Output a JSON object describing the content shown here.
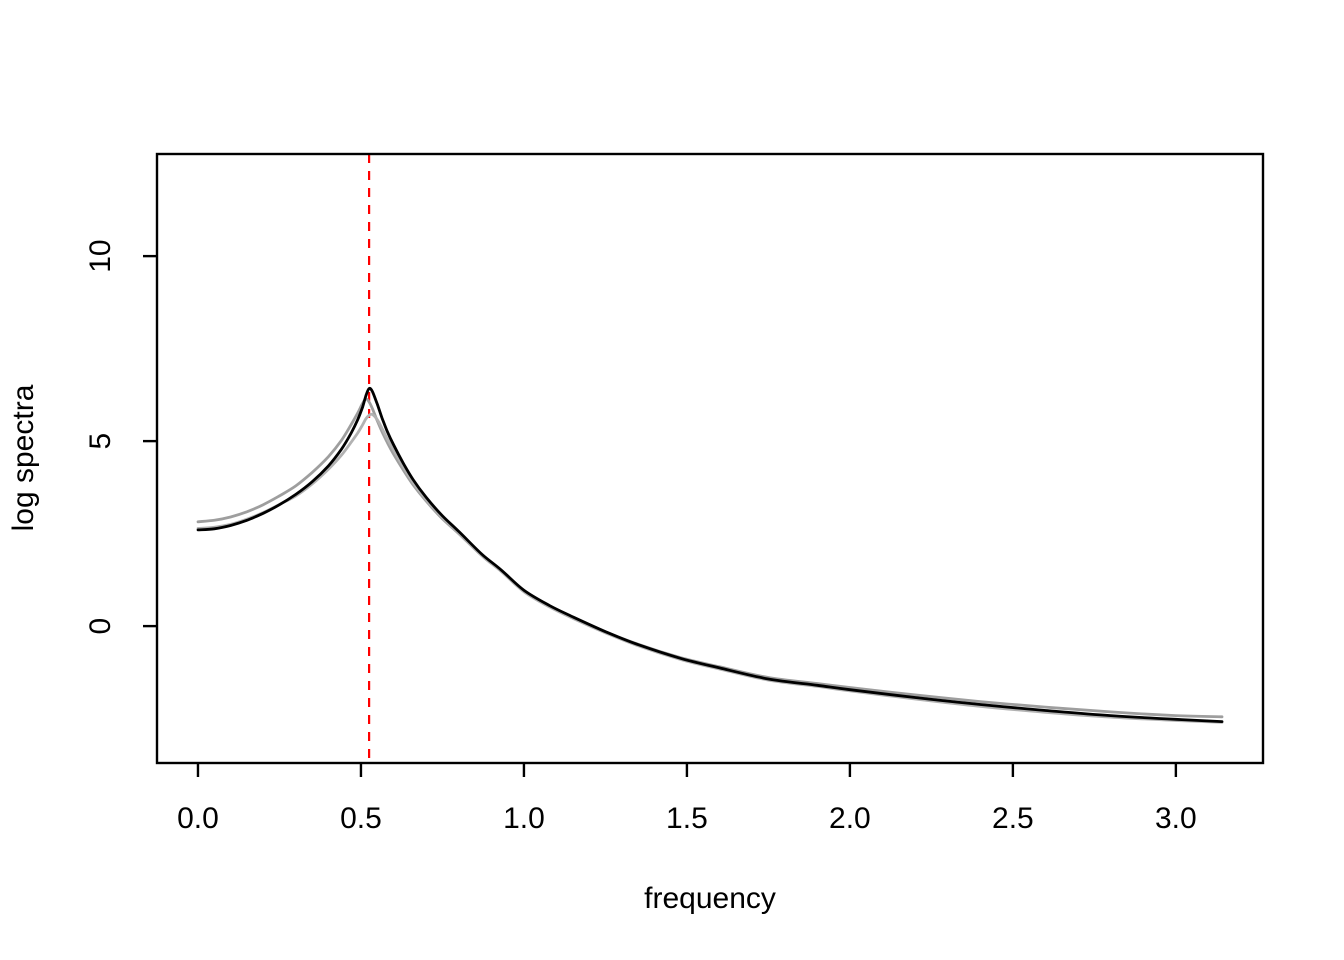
{
  "figure": {
    "background_color": "#ffffff",
    "plot_border_color": "#000000"
  },
  "chart_data": {
    "type": "line",
    "title": "",
    "xlabel": "frequency",
    "ylabel": "log spectra",
    "xlim": [
      -0.1257,
      3.2673
    ],
    "ylim": [
      -3.7,
      12.76
    ],
    "grid": false,
    "legend": null,
    "x_ticks": {
      "values": [
        0.0,
        0.5,
        1.0,
        1.5,
        2.0,
        2.5,
        3.0
      ],
      "labels": [
        "0.0",
        "0.5",
        "1.0",
        "1.5",
        "2.0",
        "2.5",
        "3.0"
      ]
    },
    "y_ticks": {
      "values": [
        0,
        5,
        10
      ],
      "labels": [
        "0",
        "5",
        "10"
      ]
    },
    "annotations": {
      "vline": {
        "x": 0.525,
        "color": "#ff0000",
        "line_style": "dashed",
        "width": 2.2
      }
    },
    "x": [
      0,
      0.05,
      0.1,
      0.15,
      0.2,
      0.25,
      0.3,
      0.35,
      0.4,
      0.44,
      0.47,
      0.49,
      0.505,
      0.515,
      0.525,
      0.535,
      0.55,
      0.565,
      0.58,
      0.6,
      0.63,
      0.66,
      0.7,
      0.75,
      0.8,
      0.87,
      0.93,
      1.0,
      1.08,
      1.15,
      1.25,
      1.35,
      1.48,
      1.6,
      1.75,
      1.9,
      2.0,
      2.2,
      2.4,
      2.6,
      2.8,
      3.0,
      3.1416
    ],
    "series": [
      {
        "name": "estimated-spectrum-gray-upper",
        "color": "#9e9e9e",
        "width": 2.8,
        "peak": {
          "x": 0.513,
          "y": 6.15
        },
        "y": [
          2.82,
          2.86,
          2.95,
          3.09,
          3.28,
          3.52,
          3.79,
          4.15,
          4.58,
          5.02,
          5.45,
          5.76,
          6.02,
          6.14,
          6.06,
          5.88,
          5.55,
          5.25,
          4.98,
          4.65,
          4.22,
          3.82,
          3.38,
          2.9,
          2.5,
          1.91,
          1.49,
          0.95,
          0.54,
          0.24,
          -0.15,
          -0.49,
          -0.85,
          -1.1,
          -1.39,
          -1.55,
          -1.66,
          -1.86,
          -2.04,
          -2.19,
          -2.32,
          -2.42,
          -2.45
        ]
      },
      {
        "name": "estimated-spectrum-gray-lower",
        "color": "#b2b2b2",
        "width": 2.8,
        "peak": {
          "x": 0.535,
          "y": 5.72
        },
        "y": [
          2.64,
          2.67,
          2.75,
          2.89,
          3.07,
          3.29,
          3.52,
          3.84,
          4.24,
          4.62,
          4.97,
          5.22,
          5.44,
          5.6,
          5.7,
          5.72,
          5.58,
          5.34,
          5.08,
          4.76,
          4.3,
          3.88,
          3.42,
          2.93,
          2.52,
          1.91,
          1.48,
          0.93,
          0.51,
          0.21,
          -0.18,
          -0.53,
          -0.9,
          -1.16,
          -1.46,
          -1.63,
          -1.75,
          -1.97,
          -2.17,
          -2.33,
          -2.46,
          -2.55,
          -2.6
        ]
      },
      {
        "name": "true-spectrum-black",
        "color": "#000000",
        "width": 2.8,
        "peak": {
          "x": 0.525,
          "y": 6.42
        },
        "y": [
          2.6,
          2.63,
          2.72,
          2.86,
          3.05,
          3.28,
          3.56,
          3.9,
          4.33,
          4.78,
          5.22,
          5.58,
          5.92,
          6.22,
          6.42,
          6.34,
          6.0,
          5.62,
          5.28,
          4.9,
          4.4,
          3.96,
          3.48,
          2.98,
          2.56,
          1.95,
          1.52,
          0.97,
          0.55,
          0.25,
          -0.15,
          -0.5,
          -0.87,
          -1.13,
          -1.43,
          -1.6,
          -1.72,
          -1.93,
          -2.12,
          -2.28,
          -2.42,
          -2.52,
          -2.58
        ]
      }
    ]
  }
}
